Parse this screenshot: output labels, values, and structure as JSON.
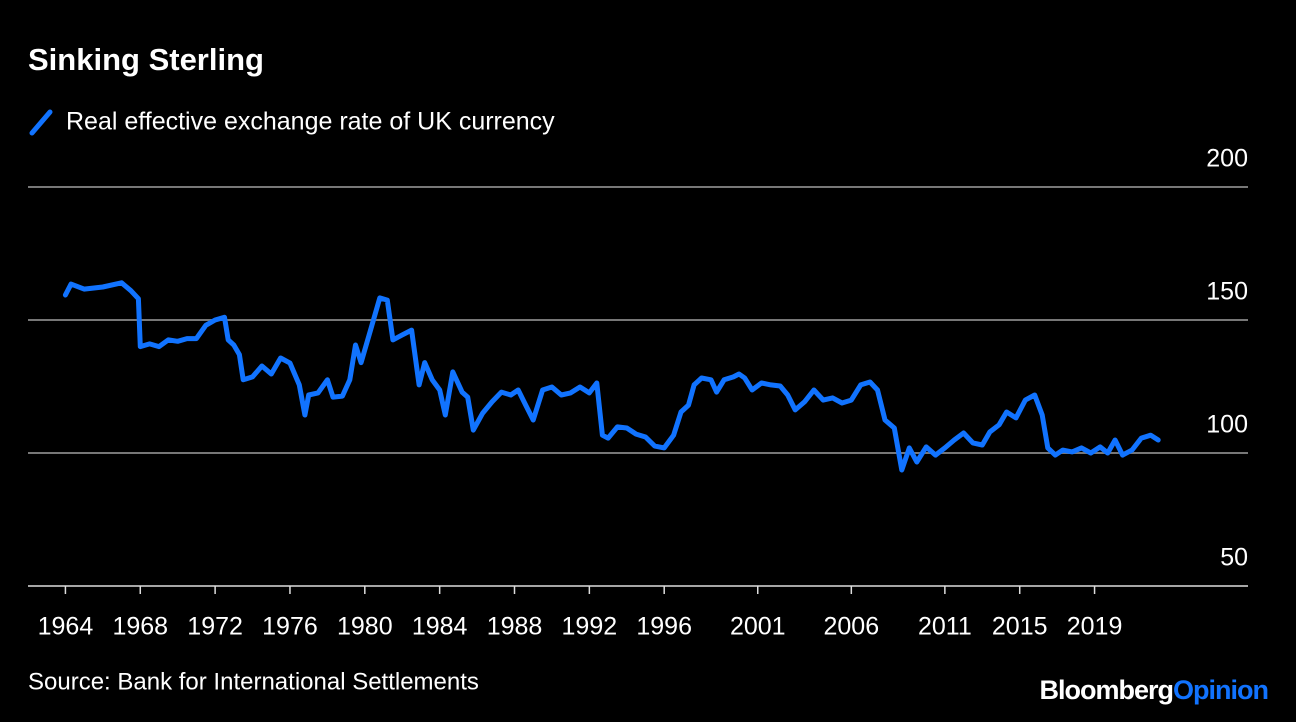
{
  "chart_data": {
    "type": "line",
    "title": "Sinking Sterling",
    "source": "Source: Bank for International Settlements",
    "brand": [
      "Bloomberg",
      "Opinion"
    ],
    "x": [
      1964.0,
      1964.3,
      1965,
      1966,
      1967,
      1967.5,
      1967.9,
      1968.0,
      1968.5,
      1969,
      1969.5,
      1970,
      1970.5,
      1971,
      1971.5,
      1972,
      1972.5,
      1972.7,
      1973,
      1973.3,
      1973.5,
      1974,
      1974.5,
      1975,
      1975.5,
      1976,
      1976.5,
      1976.8,
      1977,
      1977.5,
      1978,
      1978.3,
      1978.8,
      1979.2,
      1979.5,
      1979.8,
      1980.3,
      1980.8,
      1981.2,
      1981.5,
      1982,
      1982.5,
      1982.9,
      1983.2,
      1983.6,
      1984,
      1984.3,
      1984.7,
      1985.2,
      1985.5,
      1985.8,
      1986.3,
      1986.8,
      1987.3,
      1987.8,
      1988.2,
      1988.6,
      1989,
      1989.5,
      1990,
      1990.5,
      1991,
      1991.5,
      1992,
      1992.4,
      1992.7,
      1993,
      1993.5,
      1994,
      1994.5,
      1995,
      1995.5,
      1996,
      1996.5,
      1996.9,
      1997.3,
      1997.6,
      1998,
      1998.5,
      1998.8,
      1999.2,
      1999.7,
      2000,
      2000.3,
      2000.7,
      2001.2,
      2001.7,
      2002.2,
      2002.6,
      2003,
      2003.5,
      2004,
      2004.5,
      2005,
      2005.5,
      2006,
      2006.5,
      2007,
      2007.4,
      2007.8,
      2008.3,
      2008.7,
      2009.1,
      2009.5,
      2010,
      2010.5,
      2011,
      2011.5,
      2012,
      2012.5,
      2013,
      2013.4,
      2013.9,
      2014.3,
      2014.8,
      2015.3,
      2015.8,
      2016.2,
      2016.5,
      2016.9,
      2017.3,
      2017.8,
      2018.3,
      2018.8,
      2019.3,
      2019.7,
      2020.1,
      2020.5,
      2021,
      2021.5,
      2022,
      2022.4
    ],
    "series": [
      {
        "name": "Real effective exchange rate of UK currency",
        "color": "#1173ff",
        "values": [
          159.4,
          163.5,
          161.6,
          162.4,
          164,
          161,
          158,
          140,
          141,
          140,
          142.5,
          142,
          143,
          143,
          148,
          150,
          151,
          142.5,
          140.6,
          137,
          127.5,
          128.6,
          132.7,
          129.7,
          135.7,
          133.8,
          125.6,
          114.3,
          121.8,
          122.6,
          127.5,
          121,
          121.4,
          127.5,
          140.6,
          134,
          146,
          158.3,
          157.5,
          142.5,
          144.4,
          146.2,
          125.6,
          134,
          127.5,
          123.7,
          114.3,
          130.5,
          122.9,
          121,
          108.6,
          115,
          119.2,
          122.9,
          121.8,
          123.7,
          118,
          112.4,
          123.7,
          124.8,
          121.8,
          122.6,
          124.8,
          122.6,
          126.3,
          106.7,
          105.6,
          109.8,
          109.4,
          107.1,
          106,
          102.6,
          101.9,
          106.7,
          115.4,
          118,
          125.6,
          128.2,
          127.5,
          122.9,
          127.5,
          128.6,
          129.7,
          128.2,
          123.7,
          126.3,
          125.6,
          125.2,
          121.8,
          116.2,
          119.2,
          123.7,
          119.9,
          120.7,
          118.8,
          119.9,
          125.6,
          126.7,
          123.7,
          112.4,
          109.4,
          93.6,
          101.9,
          96.6,
          102.3,
          99.2,
          101.9,
          104.9,
          107.5,
          103.8,
          103,
          107.9,
          110.6,
          115.4,
          113.2,
          119.9,
          121.8,
          114.3,
          101.9,
          99.2,
          101.1,
          100.4,
          101.9,
          100,
          102.3,
          100,
          104.9,
          99.2,
          101.1,
          105.6,
          106.7,
          104.9
        ]
      }
    ],
    "xlim": [
      1962,
      2027.2
    ],
    "xticks": [
      1964,
      1968,
      1972,
      1976,
      1980,
      1984,
      1988,
      1992,
      1996,
      2001,
      2006,
      2011,
      2015,
      2019
    ],
    "ylim": [
      50,
      200
    ],
    "yticks": [
      50,
      100,
      150,
      200
    ],
    "grid": true
  }
}
